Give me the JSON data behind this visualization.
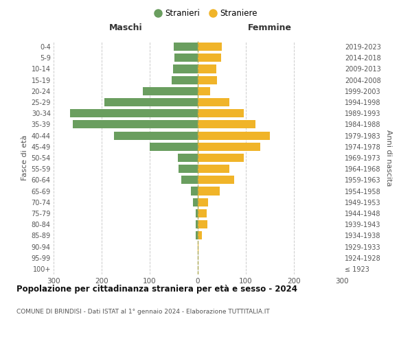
{
  "age_groups": [
    "100+",
    "95-99",
    "90-94",
    "85-89",
    "80-84",
    "75-79",
    "70-74",
    "65-69",
    "60-64",
    "55-59",
    "50-54",
    "45-49",
    "40-44",
    "35-39",
    "30-34",
    "25-29",
    "20-24",
    "15-19",
    "10-14",
    "5-9",
    "0-4"
  ],
  "birth_years": [
    "≤ 1923",
    "1924-1928",
    "1929-1933",
    "1934-1938",
    "1939-1943",
    "1944-1948",
    "1949-1953",
    "1954-1958",
    "1959-1963",
    "1964-1968",
    "1969-1973",
    "1974-1978",
    "1979-1983",
    "1984-1988",
    "1989-1993",
    "1994-1998",
    "1999-2003",
    "2004-2008",
    "2009-2013",
    "2014-2018",
    "2019-2023"
  ],
  "males": [
    0,
    0,
    0,
    4,
    5,
    5,
    10,
    15,
    35,
    40,
    42,
    100,
    175,
    260,
    265,
    195,
    115,
    55,
    52,
    48,
    50
  ],
  "females": [
    0,
    0,
    2,
    8,
    20,
    18,
    22,
    45,
    75,
    65,
    95,
    130,
    150,
    120,
    95,
    65,
    25,
    40,
    38,
    48,
    50
  ],
  "male_color": "#6a9e5f",
  "female_color": "#f0b429",
  "background_color": "#ffffff",
  "grid_color": "#cccccc",
  "title": "Popolazione per cittadinanza straniera per età e sesso - 2024",
  "subtitle": "COMUNE DI BRINDISI - Dati ISTAT al 1° gennaio 2024 - Elaborazione TUTTITALIA.IT",
  "ylabel_left": "Fasce di età",
  "ylabel_right": "Anni di nascita",
  "header_left": "Maschi",
  "header_right": "Femmine",
  "legend_male": "Stranieri",
  "legend_female": "Straniere",
  "xlim": 300,
  "bar_height": 0.75
}
